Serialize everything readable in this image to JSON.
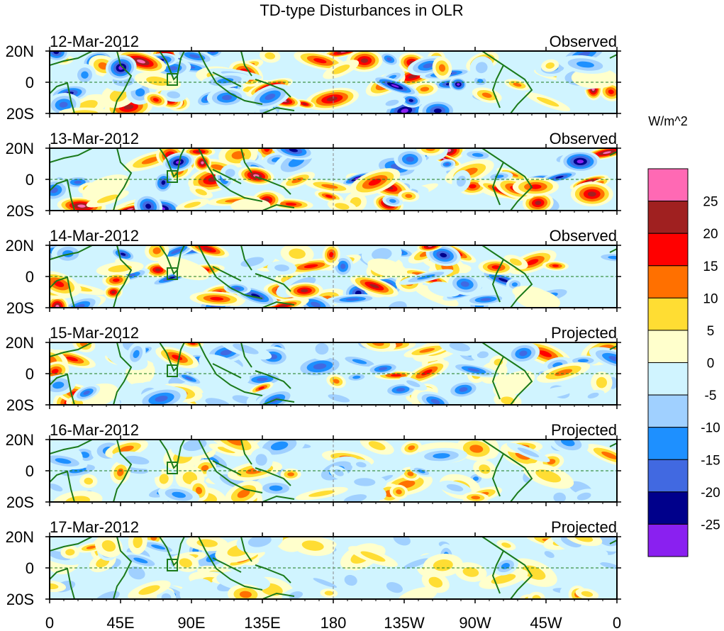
{
  "chart_data": {
    "type": "heatmap",
    "title": "TD-type Disturbances in OLR",
    "units_label": "W/m^2",
    "x_ticks": [
      "0",
      "45E",
      "90E",
      "135E",
      "180",
      "135W",
      "90W",
      "45W",
      "0"
    ],
    "x_range_deg": [
      0,
      360
    ],
    "y_ticks": [
      "20N",
      "0",
      "20S"
    ],
    "y_range_deg": [
      -20,
      20
    ],
    "panels": [
      {
        "date": "12-Mar-2012",
        "type": "Observed",
        "amplitude": 1.0,
        "seed": 11
      },
      {
        "date": "13-Mar-2012",
        "type": "Observed",
        "amplitude": 0.95,
        "seed": 23
      },
      {
        "date": "14-Mar-2012",
        "type": "Observed",
        "amplitude": 0.85,
        "seed": 37
      },
      {
        "date": "15-Mar-2012",
        "type": "Projected",
        "amplitude": 0.6,
        "seed": 41
      },
      {
        "date": "16-Mar-2012",
        "type": "Projected",
        "amplitude": 0.4,
        "seed": 53
      },
      {
        "date": "17-Mar-2012",
        "type": "Projected",
        "amplitude": 0.3,
        "seed": 67
      }
    ],
    "colorbar": {
      "levels": [
        "25",
        "20",
        "15",
        "10",
        "5",
        "0",
        "-5",
        "-10",
        "-15",
        "-20",
        "-25"
      ],
      "colors": [
        "#ff69b4",
        "#a02020",
        "#ff0000",
        "#ff7000",
        "#ffdd33",
        "#ffffcc",
        "#d0f4ff",
        "#a0d0ff",
        "#1e90ff",
        "#4169e1",
        "#00008b",
        "#8a20f0"
      ]
    },
    "coast_color": "#1a7a1a"
  }
}
